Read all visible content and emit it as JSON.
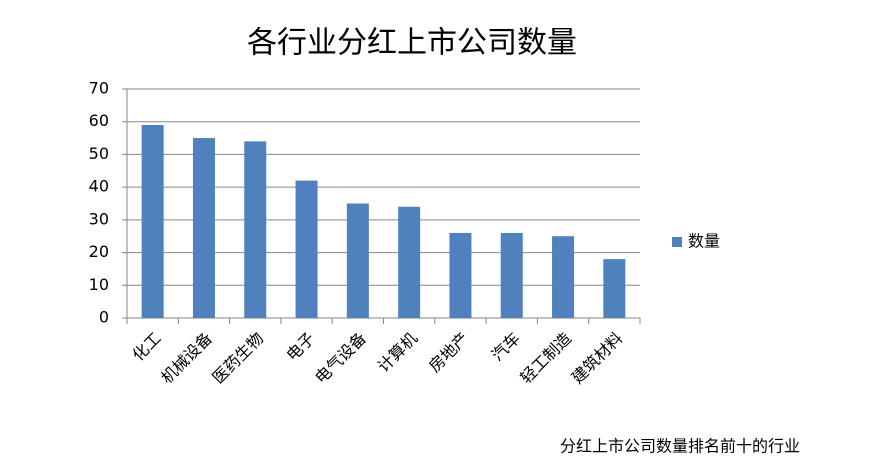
{
  "chart_data": {
    "type": "bar",
    "title": "各行业分红上市公司数量",
    "categories": [
      "化工",
      "机械设备",
      "医药生物",
      "电子",
      "电气设备",
      "计算机",
      "房地产",
      "汽车",
      "轻工制造",
      "建筑材料"
    ],
    "series": [
      {
        "name": "数量",
        "color": "#4f81bd",
        "values": [
          59,
          55,
          54,
          42,
          35,
          34,
          26,
          26,
          25,
          18
        ]
      }
    ],
    "ylim": [
      0,
      70
    ],
    "yticks": [
      0,
      10,
      20,
      30,
      40,
      50,
      60,
      70
    ],
    "grid": true,
    "legend": "right",
    "caption": "分红上市公司数量排名前十的行业"
  }
}
